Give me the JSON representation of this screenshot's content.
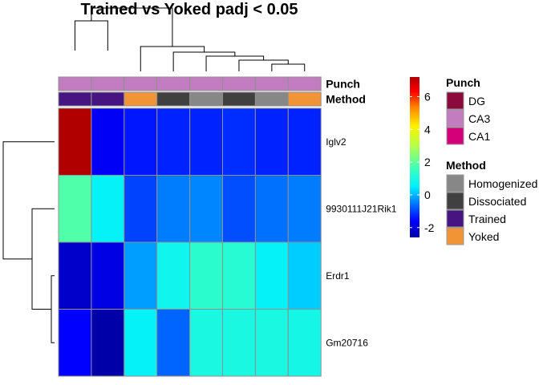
{
  "chart_data": {
    "type": "heatmap",
    "title": "Trained vs Yoked padj < 0.05",
    "rows": [
      "Iglv2",
      "9930111J21Rik1",
      "Erdr1",
      "Gm20716"
    ],
    "column_count": 8,
    "values": [
      [
        7.2,
        -1.7,
        -1.4,
        -1.3,
        -1.3,
        -1.2,
        -1.3,
        -1.3
      ],
      [
        1.8,
        0.6,
        -1.0,
        -0.5,
        -0.4,
        -0.9,
        -0.6,
        -0.5
      ],
      [
        -2.2,
        -1.9,
        -0.2,
        0.8,
        1.3,
        1.2,
        0.6,
        0.2
      ],
      [
        -1.6,
        -2.6,
        0.6,
        -0.7,
        1.0,
        1.0,
        1.0,
        0.9
      ]
    ],
    "annotations": [
      {
        "name": "Punch",
        "column_values": [
          "CA3",
          "CA3",
          "CA3",
          "CA3",
          "CA3",
          "CA3",
          "CA3",
          "CA3"
        ]
      },
      {
        "name": "Method",
        "column_values": [
          "Trained",
          "Trained",
          "Yoked",
          "Dissociated",
          "Homogenized",
          "Dissociated",
          "Homogenized",
          "Yoked"
        ]
      }
    ],
    "color_scale": {
      "min": -2.6,
      "max": 7.2,
      "ticks": [
        -2,
        0,
        2,
        4,
        6
      ],
      "stops": [
        {
          "value": -2.6,
          "color": "#0000A8"
        },
        {
          "value": -1.6,
          "color": "#0000FF"
        },
        {
          "value": -0.6,
          "color": "#0070FF"
        },
        {
          "value": 0.5,
          "color": "#00F0FF"
        },
        {
          "value": 1.5,
          "color": "#36FFC2"
        },
        {
          "value": 3.0,
          "color": "#B5FF4A"
        },
        {
          "value": 4.2,
          "color": "#FFF000"
        },
        {
          "value": 5.4,
          "color": "#FF8000"
        },
        {
          "value": 6.3,
          "color": "#FF0000"
        },
        {
          "value": 7.2,
          "color": "#B00000"
        }
      ]
    },
    "legends": [
      {
        "title": "Punch",
        "items": [
          {
            "label": "DG",
            "color": "#8B0A3B"
          },
          {
            "label": "CA3",
            "color": "#C27DC0"
          },
          {
            "label": "CA1",
            "color": "#D4007A"
          }
        ]
      },
      {
        "title": "Method",
        "items": [
          {
            "label": "Homogenized",
            "color": "#878787"
          },
          {
            "label": "Dissociated",
            "color": "#404040"
          },
          {
            "label": "Trained",
            "color": "#461582"
          },
          {
            "label": "Yoked",
            "color": "#F09436"
          }
        ]
      }
    ],
    "dendrograms": {
      "column_tree": "((1,2),(3,(4,(5,(6,(7,8))))))",
      "row_tree": "(1,(2,(3,4)))"
    },
    "cell_border_color": "#909090"
  }
}
